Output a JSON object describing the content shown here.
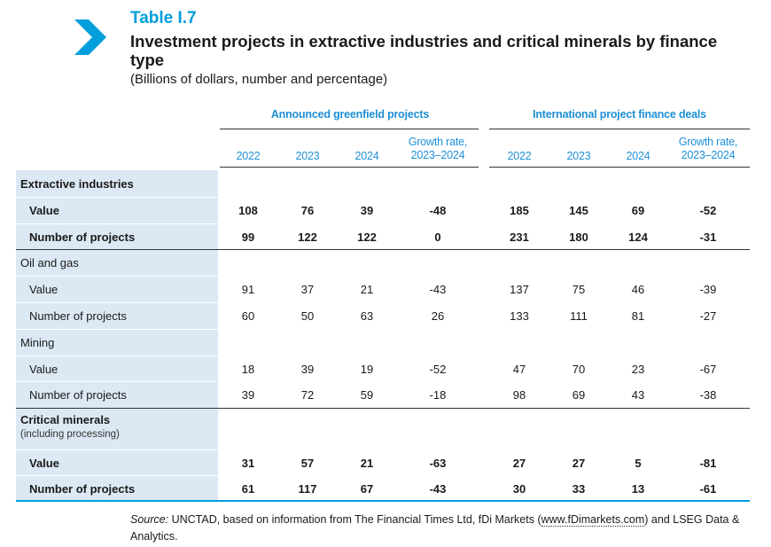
{
  "header": {
    "table_label": "Table I.7",
    "title": "Investment projects in extractive industries and critical minerals by finance type",
    "units": "(Billions of dollars, number and percentage)"
  },
  "groups": [
    {
      "label": "Announced greenfield projects"
    },
    {
      "label": "International project finance deals"
    }
  ],
  "columns": [
    "2022",
    "2023",
    "2024",
    "Growth rate,",
    "2023–2024",
    "2022",
    "2023",
    "2024",
    "Growth rate,",
    "2023–2024"
  ],
  "rows": [
    {
      "label": "Extractive industries",
      "style": "bold-section",
      "values": []
    },
    {
      "label": "Value",
      "style": "bold",
      "values": [
        "108",
        "76",
        "39",
        "-48",
        "185",
        "145",
        "69",
        "-52"
      ]
    },
    {
      "label": "Number of projects",
      "style": "bold",
      "values": [
        "99",
        "122",
        "122",
        "0",
        "231",
        "180",
        "124",
        "-31"
      ]
    },
    {
      "label": "Oil and gas",
      "style": "section",
      "values": []
    },
    {
      "label": "Value",
      "style": "normal",
      "values": [
        "91",
        "37",
        "21",
        "-43",
        "137",
        "75",
        "46",
        "-39"
      ]
    },
    {
      "label": "Number of projects",
      "style": "normal",
      "values": [
        "60",
        "50",
        "63",
        "26",
        "133",
        "111",
        "81",
        "-27"
      ]
    },
    {
      "label": "Mining",
      "style": "section",
      "values": []
    },
    {
      "label": "Value",
      "style": "normal",
      "values": [
        "18",
        "39",
        "19",
        "-52",
        "47",
        "70",
        "23",
        "-67"
      ]
    },
    {
      "label": "Number of projects",
      "style": "normal",
      "values": [
        "39",
        "72",
        "59",
        "-18",
        "98",
        "69",
        "43",
        "-38"
      ]
    },
    {
      "label": "Critical minerals",
      "sublabel": "(including processing)",
      "style": "bold-section",
      "values": []
    },
    {
      "label": "Value",
      "style": "bold",
      "values": [
        "31",
        "57",
        "21",
        "-63",
        "27",
        "27",
        "5",
        "-81"
      ]
    },
    {
      "label": "Number of projects",
      "style": "bold",
      "values": [
        "61",
        "117",
        "67",
        "-43",
        "30",
        "33",
        "13",
        "-61"
      ]
    }
  ],
  "source": {
    "prefix": "Source:",
    "text_before_link": " UNCTAD, based on information from The Financial Times Ltd, fDi Markets (",
    "link_text": "www.fDimarkets.com",
    "text_after_link": ") and LSEG Data & Analytics."
  },
  "colors": {
    "accent": "#009edb",
    "header_text": "#1e90d6",
    "label_background": "#dce9f4"
  }
}
